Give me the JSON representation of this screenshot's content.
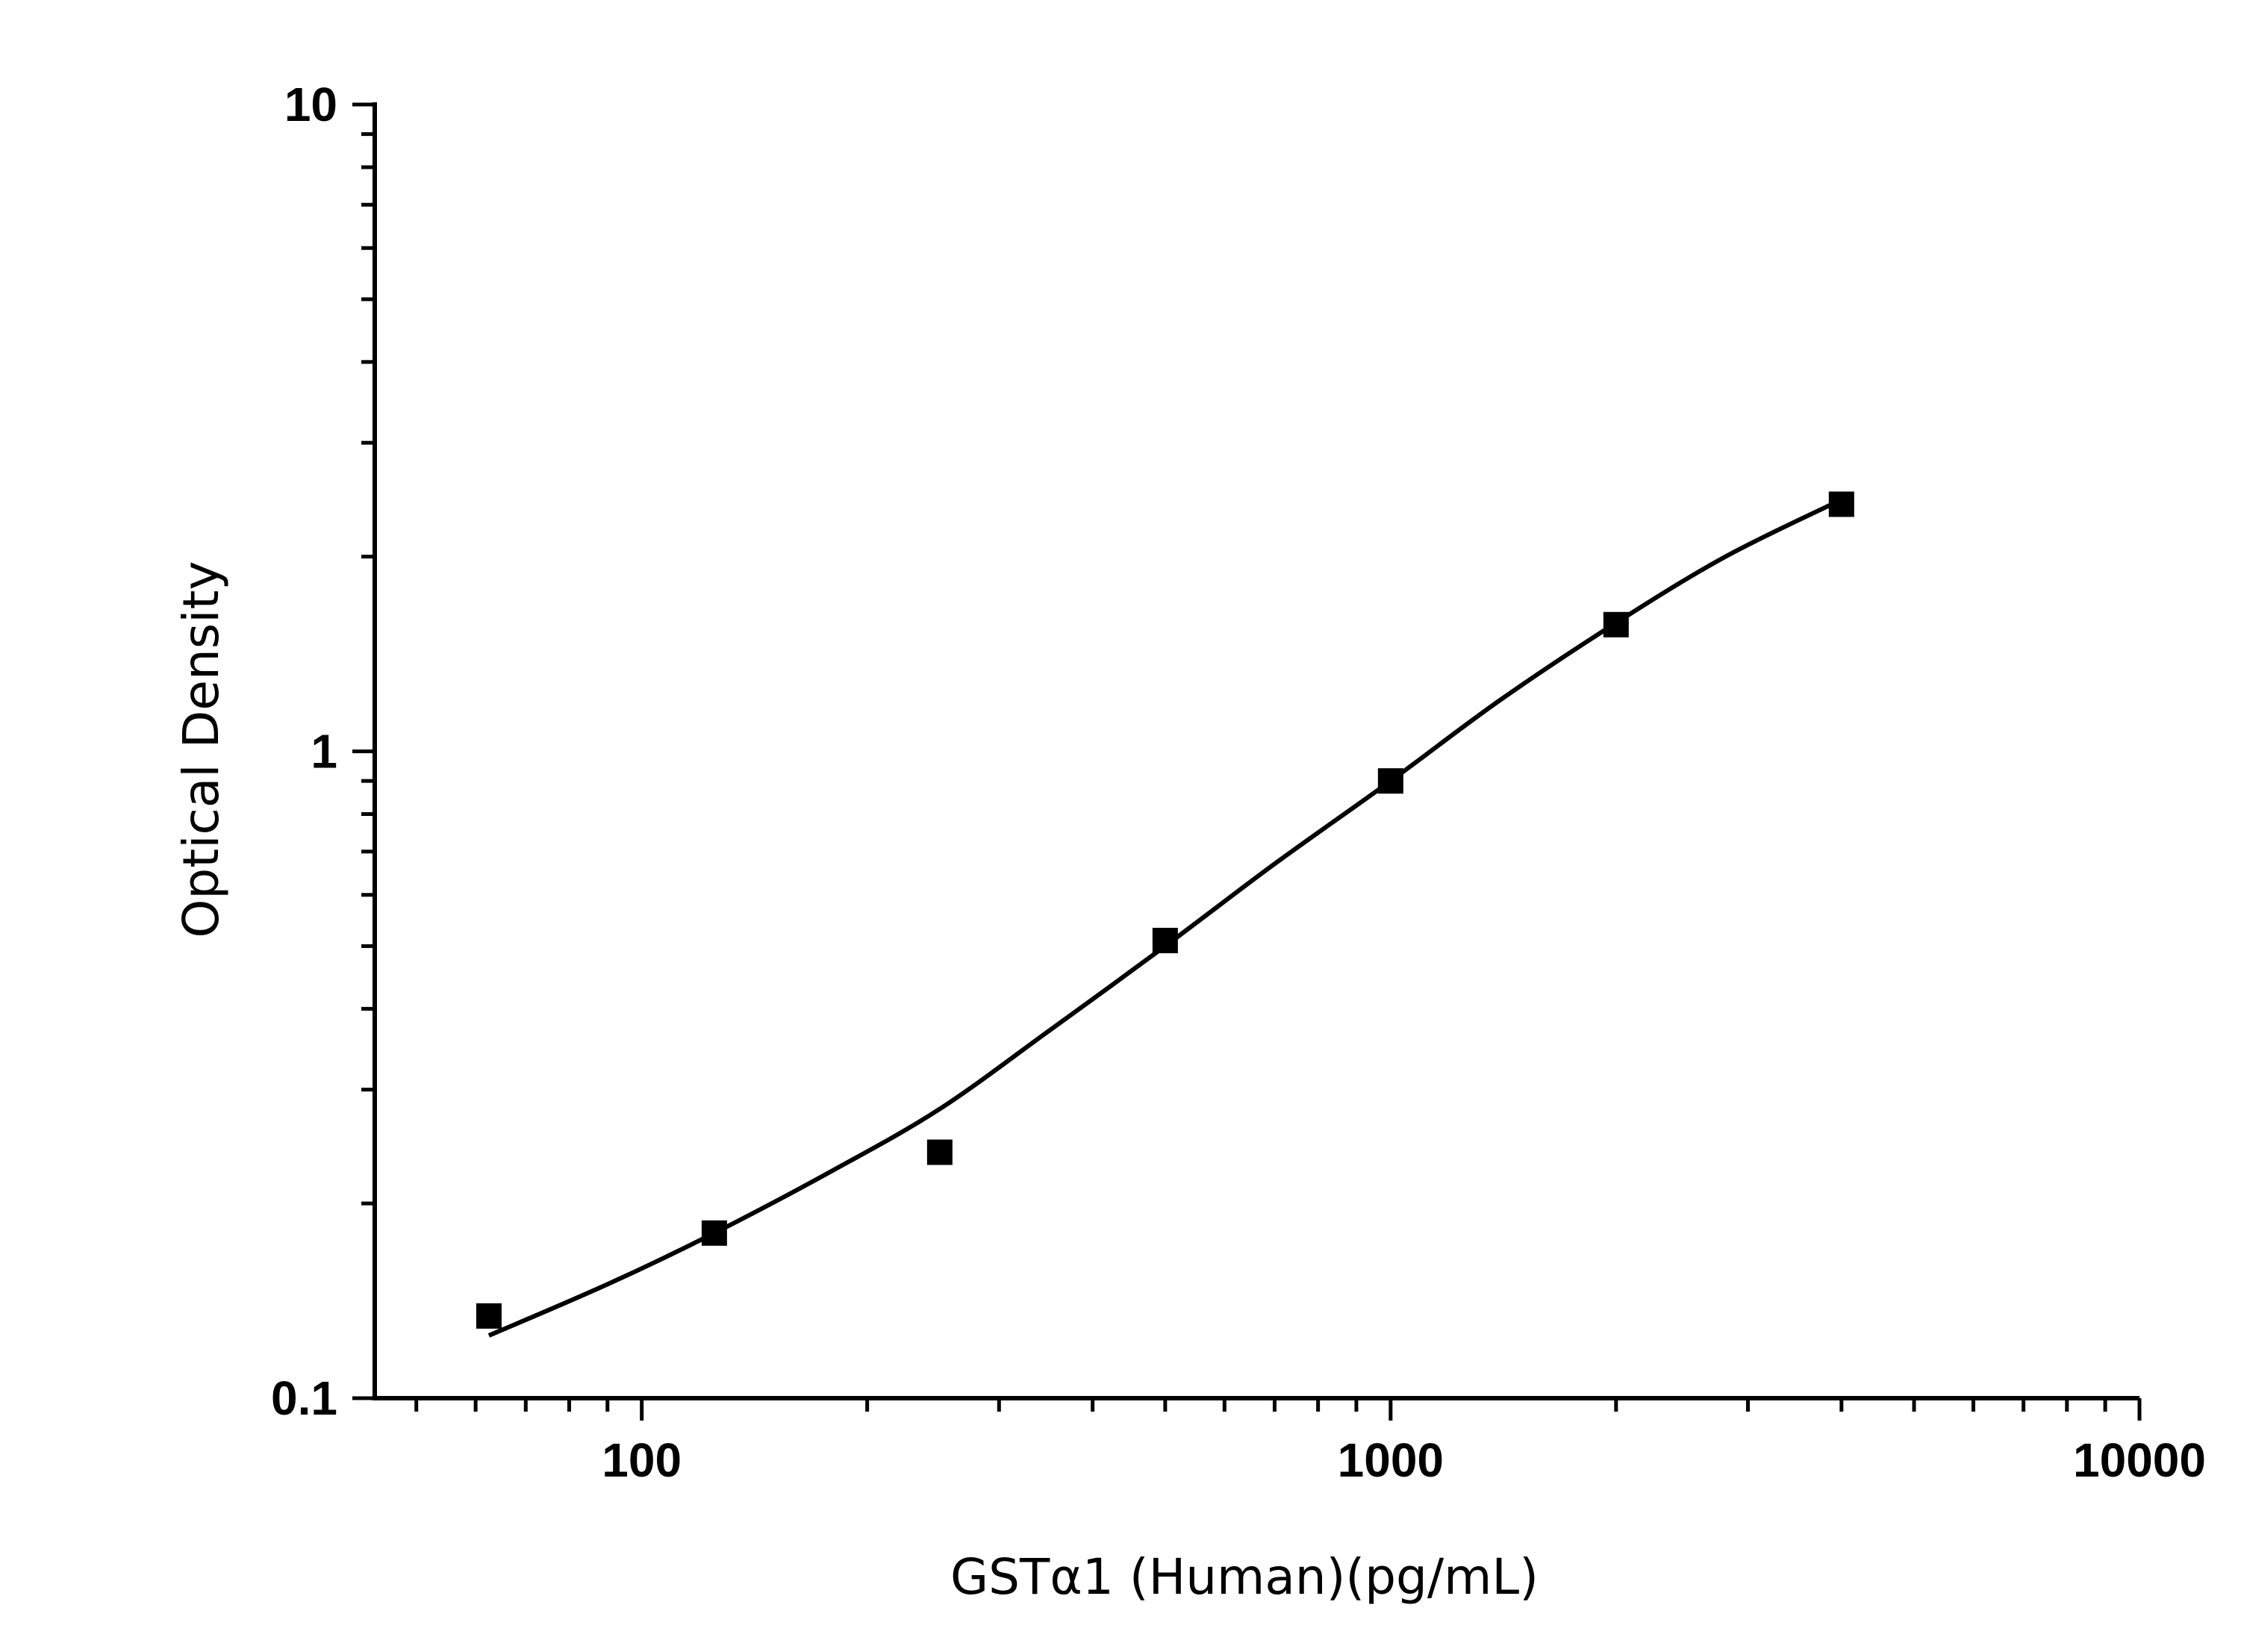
{
  "chart_data": {
    "type": "scatter",
    "title": "",
    "xlabel": "GSTα1 (Human)(pg/mL)",
    "ylabel": "Optical Density",
    "xscale": "log",
    "yscale": "log",
    "xlim": [
      44,
      10000
    ],
    "ylim": [
      0.1,
      10
    ],
    "xticks": [
      100,
      1000,
      10000
    ],
    "xtick_labels": [
      "100",
      "1000",
      "10000"
    ],
    "yticks": [
      0.1,
      1,
      10
    ],
    "ytick_labels": [
      "0.1",
      "1",
      "10"
    ],
    "grid": false,
    "legend": "none",
    "marker": "square",
    "color": "#000000",
    "series": [
      {
        "type": "scatter",
        "x": [
          62.5,
          125,
          250,
          500,
          1000,
          2000,
          4000
        ],
        "y": [
          0.134,
          0.18,
          0.24,
          0.51,
          0.9,
          1.57,
          2.41
        ]
      },
      {
        "type": "line",
        "x": [
          62.5,
          90,
          125,
          180,
          250,
          350,
          500,
          700,
          1000,
          1400,
          2000,
          2800,
          4000
        ],
        "y": [
          0.125,
          0.15,
          0.18,
          0.225,
          0.28,
          0.37,
          0.5,
          0.67,
          0.9,
          1.2,
          1.58,
          2.0,
          2.45
        ]
      }
    ]
  }
}
